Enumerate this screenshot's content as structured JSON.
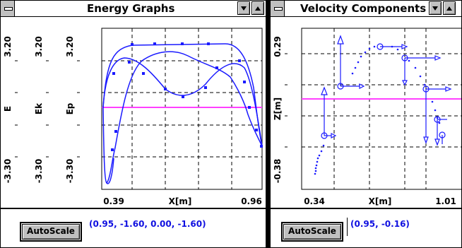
{
  "energy_window": {
    "title": "Energy Graphs",
    "y_axes": [
      {
        "label": "E",
        "max_label": "3.20",
        "min_label": "-3.30"
      },
      {
        "label": "Ek",
        "max_label": "3.20",
        "min_label": "-3.30"
      },
      {
        "label": "Ep",
        "max_label": "3.20",
        "min_label": "-3.30"
      }
    ],
    "x_label": "X[m]",
    "x_min_label": "0.39",
    "x_max_label": "0.96",
    "autoscale_label": "AutoScale",
    "readout": "(0.95, -1.60, 0.00, -1.60)",
    "colors": {
      "curve": "#1a1aff",
      "baseline": "#ff40ff",
      "grid": "#000000"
    }
  },
  "velocity_window": {
    "title": "Velocity Components",
    "y_label": "Z[m]",
    "y_max_label": "0.29",
    "y_min_label": "-0.38",
    "x_label": "X[m]",
    "x_min_label": "0.34",
    "x_max_label": "1.01",
    "autoscale_label": "AutoScale",
    "readout": "(0.95, -0.16)",
    "colors": {
      "vector": "#1a1aff",
      "baseline": "#ff40ff"
    }
  },
  "icons": [
    "system-menu-icon",
    "minimize-arrow-icon",
    "maximize-arrow-icon"
  ]
}
